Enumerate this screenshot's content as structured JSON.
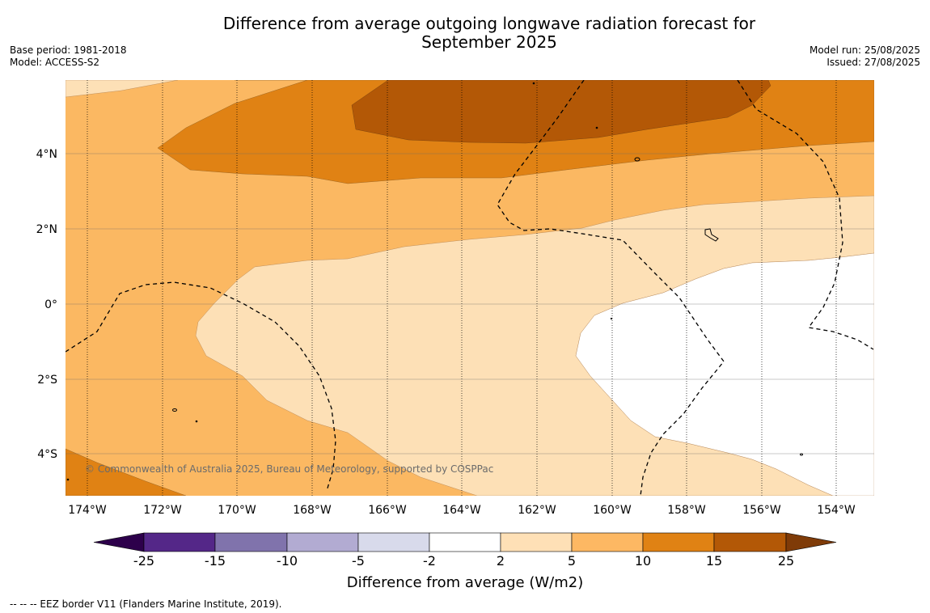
{
  "title": "Difference from average outgoing longwave radiation forecast for September 2025",
  "meta_left": {
    "base_period": "Base period: 1981-2018",
    "model": "Model: ACCESS-S2"
  },
  "meta_right": {
    "model_run": "Model run: 25/08/2025",
    "issued": "Issued: 27/08/2025"
  },
  "map": {
    "lon_labels": [
      "174°W",
      "172°W",
      "170°W",
      "168°W",
      "166°W",
      "164°W",
      "162°W",
      "160°W",
      "158°W",
      "156°W",
      "154°W"
    ],
    "lat_labels": [
      "4°N",
      "2°N",
      "0°",
      "2°S",
      "4°S"
    ],
    "copyright": "© Commonwealth of Australia 2025, Bureau of Meteorology, supported by COSPPac",
    "colors": {
      "c2_5": "#fde0b6",
      "c5_10": "#fbb862",
      "c10_15": "#e08214",
      "c15_25": "#b35806",
      "neutral": "#ffffff"
    }
  },
  "colorbar": {
    "title": "Difference from average (W/m2)",
    "ticks": [
      "-25",
      "-15",
      "-10",
      "-5",
      "-2",
      "2",
      "5",
      "10",
      "15",
      "25"
    ],
    "colors": [
      "#2d004b",
      "#542788",
      "#8073ac",
      "#b2abd2",
      "#d8daeb",
      "#ffffff",
      "#fee0b6",
      "#fdb863",
      "#e08214",
      "#b35806",
      "#7f3b08"
    ]
  },
  "footer": "--  --  -- EEZ border V11 (Flanders Marine Institute, 2019)."
}
